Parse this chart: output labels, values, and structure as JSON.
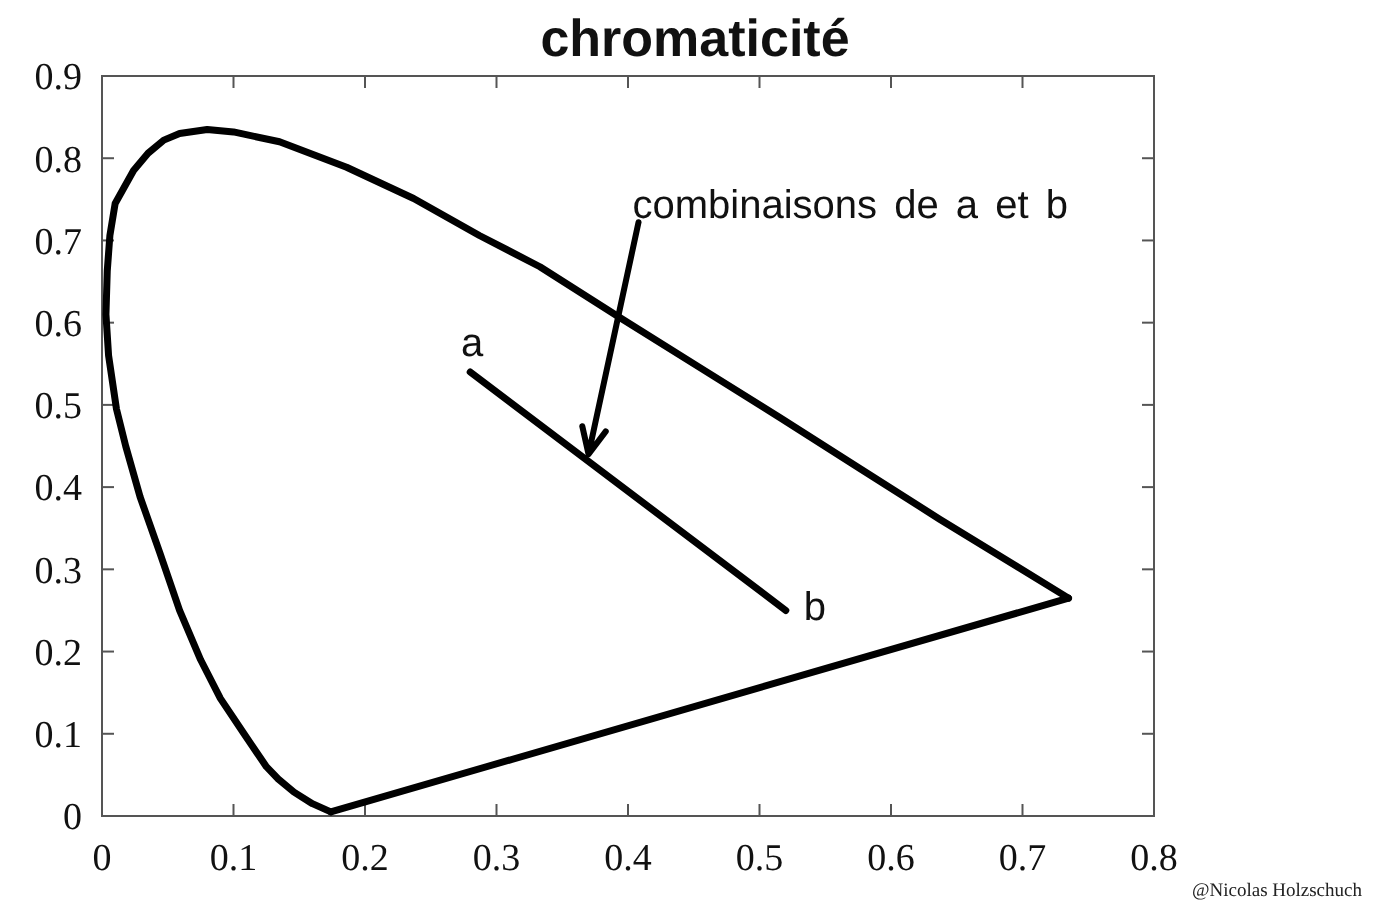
{
  "chart_data": {
    "type": "line",
    "title": "chromaticité",
    "series": [
      {
        "color": "#000000",
        "x": [
          0.174,
          0.16,
          0.146,
          0.134,
          0.125,
          0.108,
          0.09,
          0.075,
          0.059,
          0.044,
          0.029,
          0.018,
          0.011,
          0.005,
          0.003,
          0.004,
          0.006,
          0.01,
          0.024,
          0.035,
          0.047,
          0.059,
          0.08,
          0.1,
          0.135,
          0.186,
          0.237,
          0.287,
          0.333,
          0.394,
          0.455,
          0.516,
          0.576,
          0.637,
          0.735
        ],
        "values": [
          0.005,
          0.015,
          0.029,
          0.045,
          0.06,
          0.1,
          0.143,
          0.19,
          0.25,
          0.32,
          0.388,
          0.45,
          0.495,
          0.56,
          0.61,
          0.663,
          0.706,
          0.745,
          0.785,
          0.806,
          0.822,
          0.83,
          0.835,
          0.832,
          0.82,
          0.789,
          0.751,
          0.706,
          0.668,
          0.606,
          0.545,
          0.484,
          0.423,
          0.361,
          0.265
        ]
      },
      {
        "color": "#000000",
        "x": [
          0.735,
          0.174
        ],
        "values": [
          0.265,
          0.005
        ]
      },
      {
        "color": "#000000",
        "x": [
          0.28,
          0.52
        ],
        "values": [
          0.54,
          0.25
        ]
      }
    ],
    "xlim": [
      0,
      0.8
    ],
    "ylim": [
      0,
      0.9
    ],
    "xticks": [
      0,
      0.1,
      0.2,
      0.3,
      0.4,
      0.5,
      0.6,
      0.7,
      0.8
    ],
    "yticks": [
      0,
      0.1,
      0.2,
      0.3,
      0.4,
      0.5,
      0.6,
      0.7,
      0.8,
      0.9
    ],
    "grid": false,
    "marker": "none",
    "line_style": "solid",
    "annotations": [
      {
        "text": "a",
        "x": 0.28,
        "y": 0.54
      },
      {
        "text": "b",
        "x": 0.52,
        "y": 0.25
      },
      {
        "text": "combinaisons de a et b",
        "x": 0.37,
        "y": 0.44
      },
      "@Nicolas Holzschuch"
    ]
  }
}
